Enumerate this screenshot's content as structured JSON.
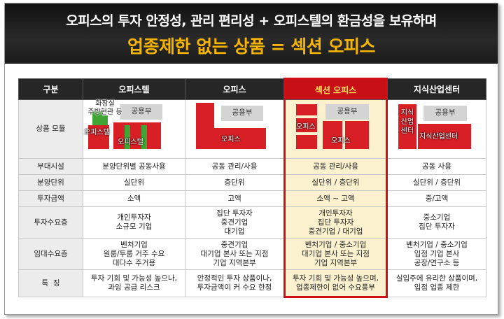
{
  "banner": {
    "line1": "오피스의 투자 안정성, 관리 편리성 + 오피스텔의 환금성을 보유하며",
    "line2": "업종제한 없는 상품 = 섹션 오피스"
  },
  "columns": [
    "구분",
    "오피스텔",
    "오피스",
    "섹션 오피스",
    "지식산업센터"
  ],
  "module_row": {
    "label": "상품 모듈",
    "officetel": {
      "shared": "공용부",
      "amenity": "화장실\n주방현관 등",
      "office_left": "오피스텔",
      "office_bottom": "오피스텔"
    },
    "office": {
      "shared": "공용부",
      "office": "오피스"
    },
    "section": {
      "shared": "공용부",
      "office_left": "오피스",
      "office_mid": "오피스"
    },
    "knowledge": {
      "shared": "공용부",
      "center_vertical": "지식\n산업\n센터",
      "center_horizontal": "지식산업센터"
    }
  },
  "rows": [
    {
      "label": "부대시설",
      "officetel": "분양단위별 공동사용",
      "office": "공동 관리/사용",
      "section": "공동 관리/사용",
      "knowledge": "공동 사용"
    },
    {
      "label": "분양단위",
      "officetel": "실단위",
      "office": "층단위",
      "section": "실단위 / 층단위",
      "knowledge": "실단위 / 층단위"
    },
    {
      "label": "투자금액",
      "officetel": "소액",
      "office": "고액",
      "section": "소액 ~ 고액",
      "knowledge": "중/고액"
    },
    {
      "label": "투자수요층",
      "officetel": "개인투자자\n소규모 기업",
      "office": "집단 투자자\n중견기업\n대기업",
      "section": "개인투자자\n집단 투자자\n중견기업 / 대기업",
      "knowledge": "중소기업\n집단 투자자"
    },
    {
      "label": "임대수요층",
      "officetel": "벤처기업\n원룸/투룸 거주 수요\n대다수 주거용",
      "office": "중견기업\n대기업 본사 또는 지점\n기업 지역본부",
      "section": "벤처기업 / 중소기업\n대기업 본사 또는 지점\n기업 지역본부",
      "knowledge": "벤처기업 / 중소기업\n입점 기업 본사\n공장/연구소 등"
    },
    {
      "label": "특  징",
      "officetel": "투자 기회 및 가능성 높으나,\n과잉 공급 리스크",
      "office": "안정적인 투자 상품이나,\n투자금액이 커 수요 한정",
      "section": "투자 기회 및 가능성 높으며,\n업종제한이 없어 수요풍부",
      "knowledge": "실입주에 유리한 상품이며,\n입점 업종 제한"
    }
  ],
  "colors": {
    "accent_red": "#d01018",
    "highlight_bg": "#fbf1cf",
    "title_yellow": "#f7b500",
    "header_bg": "#262626"
  }
}
